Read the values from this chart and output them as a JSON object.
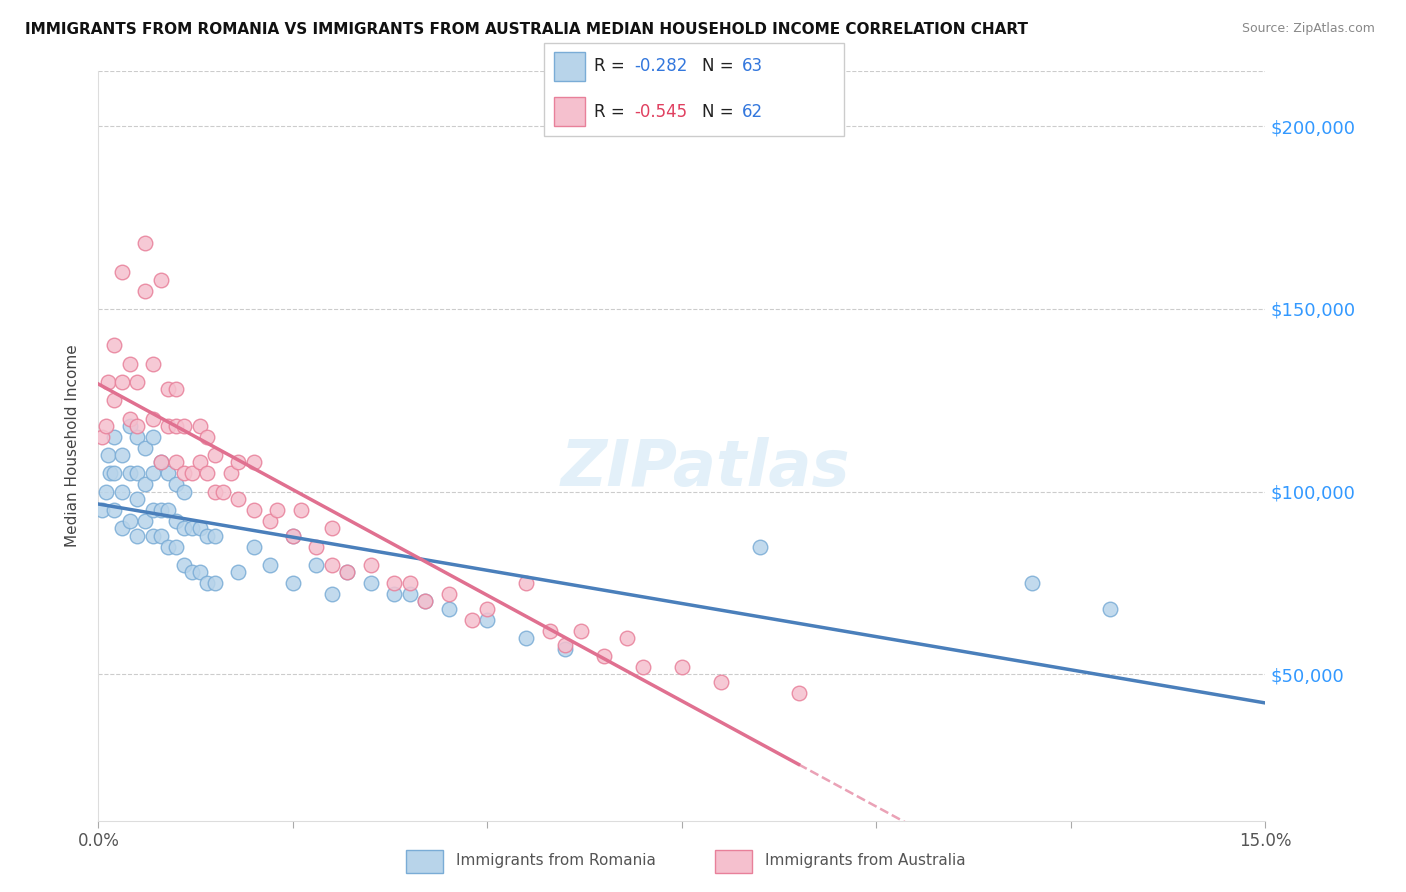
{
  "title": "IMMIGRANTS FROM ROMANIA VS IMMIGRANTS FROM AUSTRALIA MEDIAN HOUSEHOLD INCOME CORRELATION CHART",
  "source": "Source: ZipAtlas.com",
  "ylabel": "Median Household Income",
  "y_ticks": [
    50000,
    100000,
    150000,
    200000
  ],
  "y_tick_labels": [
    "$50,000",
    "$100,000",
    "$150,000",
    "$200,000"
  ],
  "x_min": 0.0,
  "x_max": 0.15,
  "y_min": 10000,
  "y_max": 215000,
  "romania_color": "#b8d4ea",
  "australia_color": "#f5c0ce",
  "romania_edge": "#7aacd6",
  "australia_edge": "#e8809a",
  "romania_R": -0.282,
  "romania_N": 63,
  "australia_R": -0.545,
  "australia_N": 62,
  "legend_romania_label": "Immigrants from Romania",
  "legend_australia_label": "Immigrants from Australia",
  "watermark_text": "ZIPatlas",
  "romania_line_color": "#4a7fbb",
  "australia_line_color": "#e07090",
  "romania_scatter_x": [
    0.0005,
    0.001,
    0.0012,
    0.0015,
    0.002,
    0.002,
    0.002,
    0.003,
    0.003,
    0.003,
    0.004,
    0.004,
    0.004,
    0.005,
    0.005,
    0.005,
    0.005,
    0.006,
    0.006,
    0.006,
    0.007,
    0.007,
    0.007,
    0.007,
    0.008,
    0.008,
    0.008,
    0.009,
    0.009,
    0.009,
    0.01,
    0.01,
    0.01,
    0.011,
    0.011,
    0.011,
    0.012,
    0.012,
    0.013,
    0.013,
    0.014,
    0.014,
    0.015,
    0.015,
    0.018,
    0.02,
    0.022,
    0.025,
    0.025,
    0.028,
    0.03,
    0.032,
    0.035,
    0.038,
    0.04,
    0.042,
    0.045,
    0.05,
    0.055,
    0.06,
    0.085,
    0.12,
    0.13
  ],
  "romania_scatter_y": [
    95000,
    100000,
    110000,
    105000,
    95000,
    105000,
    115000,
    90000,
    100000,
    110000,
    92000,
    105000,
    118000,
    88000,
    98000,
    105000,
    115000,
    92000,
    102000,
    112000,
    88000,
    95000,
    105000,
    115000,
    88000,
    95000,
    108000,
    85000,
    95000,
    105000,
    85000,
    92000,
    102000,
    80000,
    90000,
    100000,
    78000,
    90000,
    78000,
    90000,
    75000,
    88000,
    75000,
    88000,
    78000,
    85000,
    80000,
    75000,
    88000,
    80000,
    72000,
    78000,
    75000,
    72000,
    72000,
    70000,
    68000,
    65000,
    60000,
    57000,
    85000,
    75000,
    68000
  ],
  "australia_scatter_x": [
    0.0005,
    0.001,
    0.0012,
    0.002,
    0.002,
    0.003,
    0.003,
    0.004,
    0.004,
    0.005,
    0.005,
    0.006,
    0.006,
    0.007,
    0.007,
    0.008,
    0.008,
    0.009,
    0.009,
    0.01,
    0.01,
    0.01,
    0.011,
    0.011,
    0.012,
    0.013,
    0.013,
    0.014,
    0.014,
    0.015,
    0.015,
    0.016,
    0.017,
    0.018,
    0.018,
    0.02,
    0.02,
    0.022,
    0.023,
    0.025,
    0.026,
    0.028,
    0.03,
    0.03,
    0.032,
    0.035,
    0.038,
    0.04,
    0.042,
    0.045,
    0.048,
    0.05,
    0.055,
    0.058,
    0.06,
    0.062,
    0.065,
    0.068,
    0.07,
    0.075,
    0.08,
    0.09
  ],
  "australia_scatter_y": [
    115000,
    118000,
    130000,
    125000,
    140000,
    130000,
    160000,
    120000,
    135000,
    118000,
    130000,
    155000,
    168000,
    120000,
    135000,
    158000,
    108000,
    118000,
    128000,
    108000,
    118000,
    128000,
    105000,
    118000,
    105000,
    108000,
    118000,
    105000,
    115000,
    100000,
    110000,
    100000,
    105000,
    98000,
    108000,
    95000,
    108000,
    92000,
    95000,
    88000,
    95000,
    85000,
    80000,
    90000,
    78000,
    80000,
    75000,
    75000,
    70000,
    72000,
    65000,
    68000,
    75000,
    62000,
    58000,
    62000,
    55000,
    60000,
    52000,
    52000,
    48000,
    45000
  ]
}
